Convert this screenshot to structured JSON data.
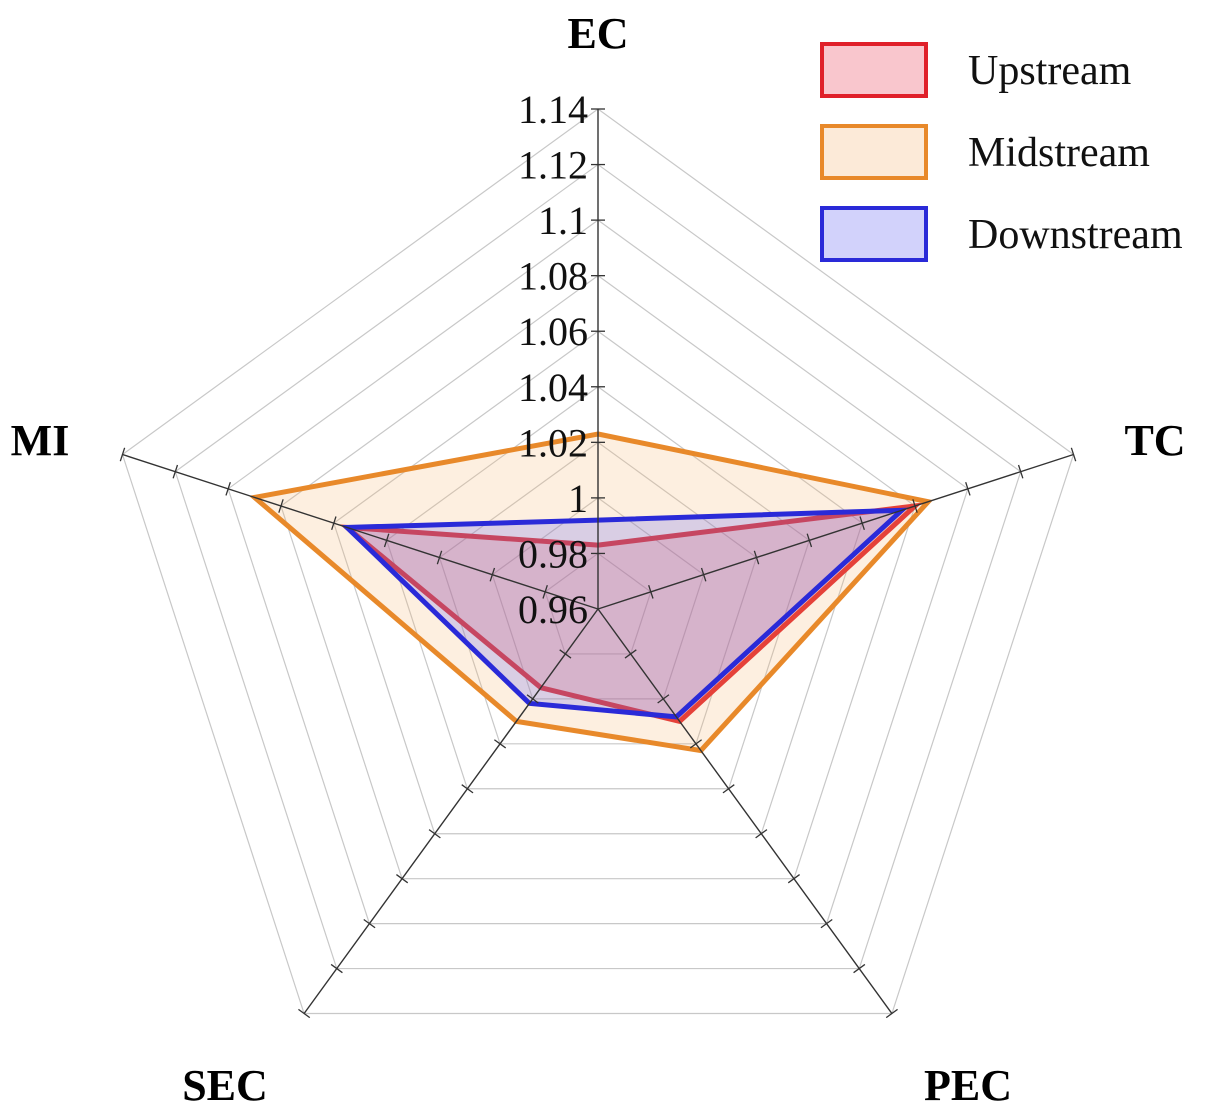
{
  "chart_data": {
    "type": "radar",
    "axes": [
      "EC",
      "TC",
      "PEC",
      "SEC",
      "MI"
    ],
    "r_ticks": [
      "0.96",
      "0.98",
      "1",
      "1.02",
      "1.04",
      "1.06",
      "1.08",
      "1.1",
      "1.12",
      "1.14"
    ],
    "rlim": [
      0.96,
      1.14
    ],
    "grid": true,
    "legend_position": "top-right",
    "series": [
      {
        "name": "Upstream",
        "values": [
          0.983,
          1.08,
          1.01,
          0.995,
          1.055
        ],
        "stroke": "#e0202a",
        "fill": "#e8344a"
      },
      {
        "name": "Midstream",
        "values": [
          1.023,
          1.085,
          1.023,
          1.01,
          1.09
        ],
        "stroke": "#e8892a",
        "fill": "#f6b473"
      },
      {
        "name": "Downstream",
        "values": [
          0.992,
          1.075,
          1.008,
          1.002,
          1.055
        ],
        "stroke": "#2a2ad8",
        "fill": "#5c5cf0"
      }
    ]
  }
}
